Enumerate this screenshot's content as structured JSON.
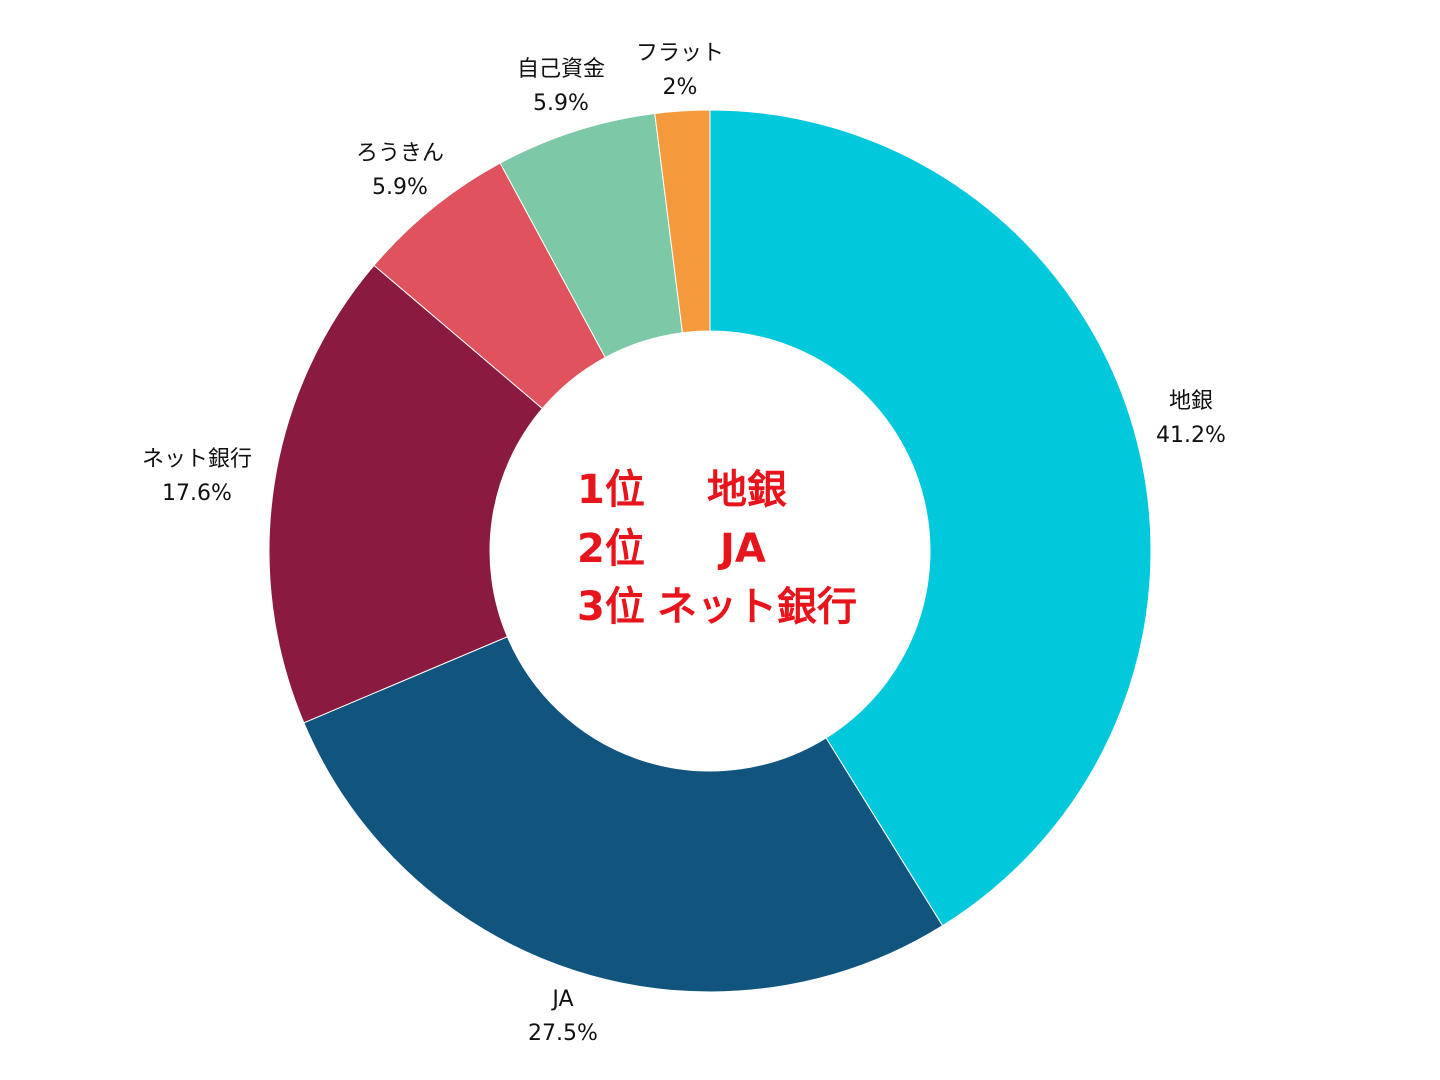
{
  "chart_data": {
    "type": "pie",
    "variant": "donut",
    "title": "",
    "unit": "%",
    "slices": [
      {
        "label": "地銀",
        "value": 41.2,
        "value_text": "41.2%",
        "color": "#02c8dc"
      },
      {
        "label": "JA",
        "value": 27.5,
        "value_text": "27.5%",
        "color": "#11557f"
      },
      {
        "label": "ネット銀行",
        "value": 17.6,
        "value_text": "17.6%",
        "color": "#8a1a3f"
      },
      {
        "label": "ろうきん",
        "value": 5.9,
        "value_text": "5.9%",
        "color": "#e0525e"
      },
      {
        "label": "自己資金",
        "value": 5.9,
        "value_text": "5.9%",
        "color": "#7dc8a7"
      },
      {
        "label": "フラット",
        "value": 2,
        "value_text": "2%",
        "color": "#f59a3c"
      }
    ],
    "start_angle": "12 o'clock",
    "direction": "clockwise",
    "legend": "none",
    "center_annotation": [
      {
        "rank": "1位",
        "name": "地銀"
      },
      {
        "rank": "2位",
        "name": "JA"
      },
      {
        "rank": "3位",
        "name": "ネット銀行"
      }
    ],
    "center_text_color": "#e8141b"
  }
}
